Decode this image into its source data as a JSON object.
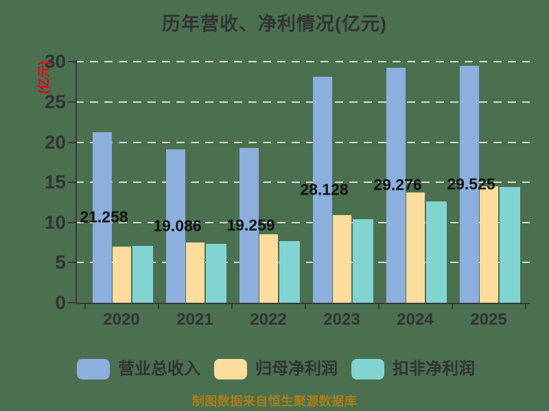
{
  "title": "历年营收、净利情况(亿元)",
  "footer_note": "制图数据来自恒生聚源数据库",
  "colors": {
    "background": "#4a7050",
    "axis": "#383838",
    "gridline": "#dcdcdc",
    "text": "#333333",
    "y_unit_label": "#e60012",
    "footer": "#a87d18",
    "revenue_bar": "#8cafdd",
    "net_profit_bar": "#fcdd9e",
    "deducted_profit_bar": "#82d4d2"
  },
  "chart_data": {
    "type": "bar",
    "title": "历年营收、净利情况(亿元)",
    "ylabel": "(亿元)",
    "xlabel": "",
    "ylim": [
      0,
      30
    ],
    "yticks": [
      0,
      5,
      10,
      15,
      20,
      25,
      30
    ],
    "grid": "horizontal dashed",
    "legend_position": "bottom",
    "categories": [
      "2020",
      "2021",
      "2022",
      "2023",
      "2024",
      "2025"
    ],
    "series": [
      {
        "name": "营业总收入",
        "color": "#8cafdd",
        "values": [
          21.258,
          19.086,
          19.259,
          28.128,
          29.276,
          29.525
        ]
      },
      {
        "name": "归母净利润",
        "color": "#fcdd9e",
        "values": [
          7.0,
          7.5,
          8.5,
          10.9,
          13.7,
          14.5
        ]
      },
      {
        "name": "扣非净利润",
        "color": "#82d4d2",
        "values": [
          7.1,
          7.3,
          7.7,
          10.4,
          12.6,
          14.4
        ]
      }
    ],
    "bar_labels": [
      "21.258",
      "19.086",
      "19.259",
      "28.128",
      "29.276",
      "29.525"
    ],
    "bar_label_series": "营业总收入",
    "note": "制图数据来自恒生聚源数据库"
  },
  "legend": {
    "items": [
      {
        "label": "营业总收入",
        "color": "#8cafdd"
      },
      {
        "label": "归母净利润",
        "color": "#fcdd9e"
      },
      {
        "label": "扣非净利润",
        "color": "#82d4d2"
      }
    ]
  }
}
